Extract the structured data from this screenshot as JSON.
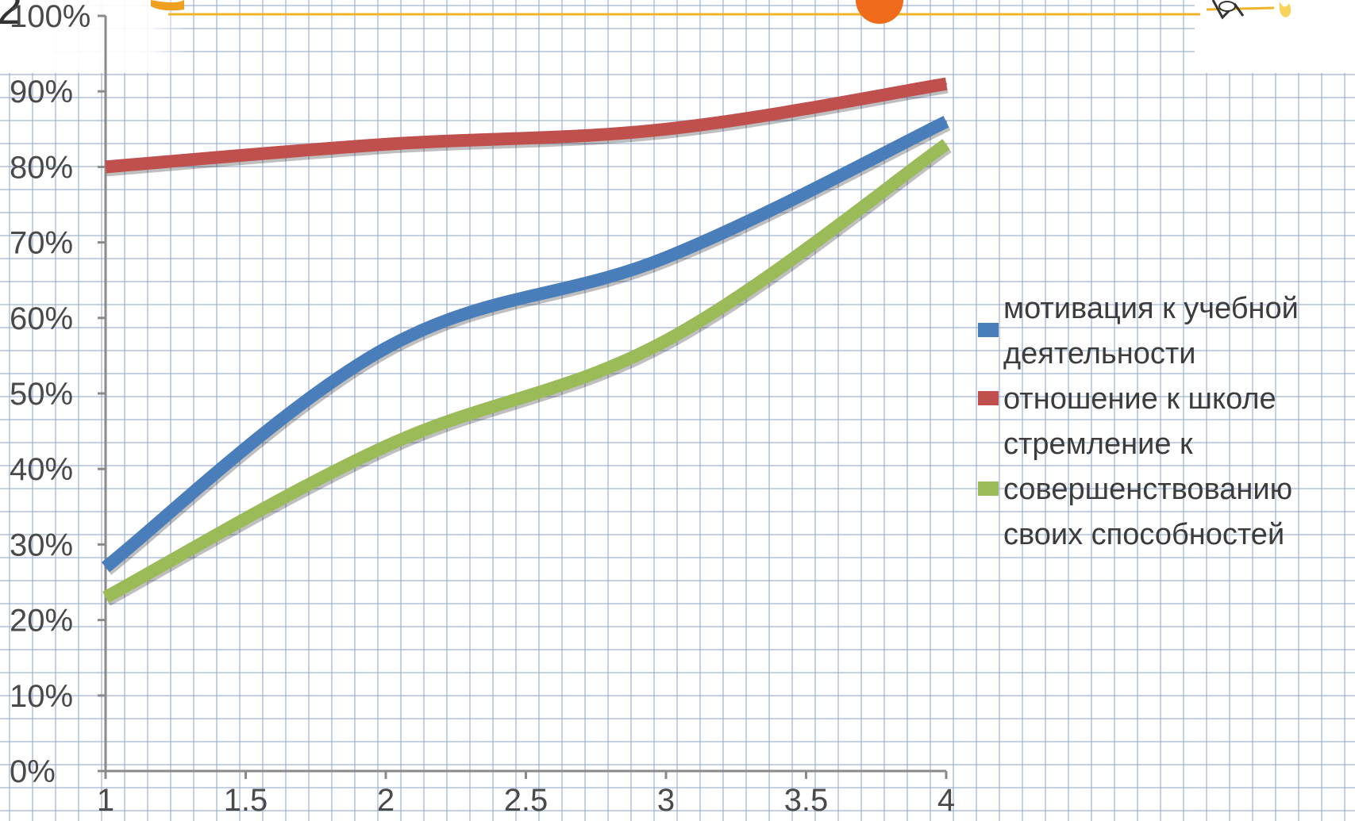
{
  "chart_data": {
    "type": "line",
    "title": "",
    "xlabel": "",
    "ylabel": "",
    "x": [
      1,
      2,
      3,
      4
    ],
    "x_ticks": [
      "1",
      "1.5",
      "2",
      "2.5",
      "3",
      "3.5",
      "4"
    ],
    "y_ticks": [
      "0%",
      "10%",
      "20%",
      "30%",
      "40%",
      "50%",
      "60%",
      "70%",
      "80%",
      "90%",
      "100%"
    ],
    "xlim": [
      1,
      4
    ],
    "ylim": [
      0,
      100
    ],
    "grid": true,
    "legend_position": "right",
    "series": [
      {
        "name": "мотивация к учебной деятельности",
        "name_lines": [
          "мотивация к учебной",
          "деятельности"
        ],
        "color": "#4a7ebb",
        "values": [
          27,
          56,
          68,
          86
        ]
      },
      {
        "name": "отношение к школе",
        "name_lines": [
          "отношение к школе"
        ],
        "color": "#c0504d",
        "values": [
          80,
          83,
          85,
          91
        ]
      },
      {
        "name": "стремление к совершенствованию своих способностей",
        "name_lines": [
          "стремление к",
          "совершенствованию",
          "своих способностей"
        ],
        "color": "#9bbb59",
        "values": [
          23,
          43,
          57,
          83
        ]
      }
    ]
  },
  "decor": {
    "corner_text": "2"
  }
}
